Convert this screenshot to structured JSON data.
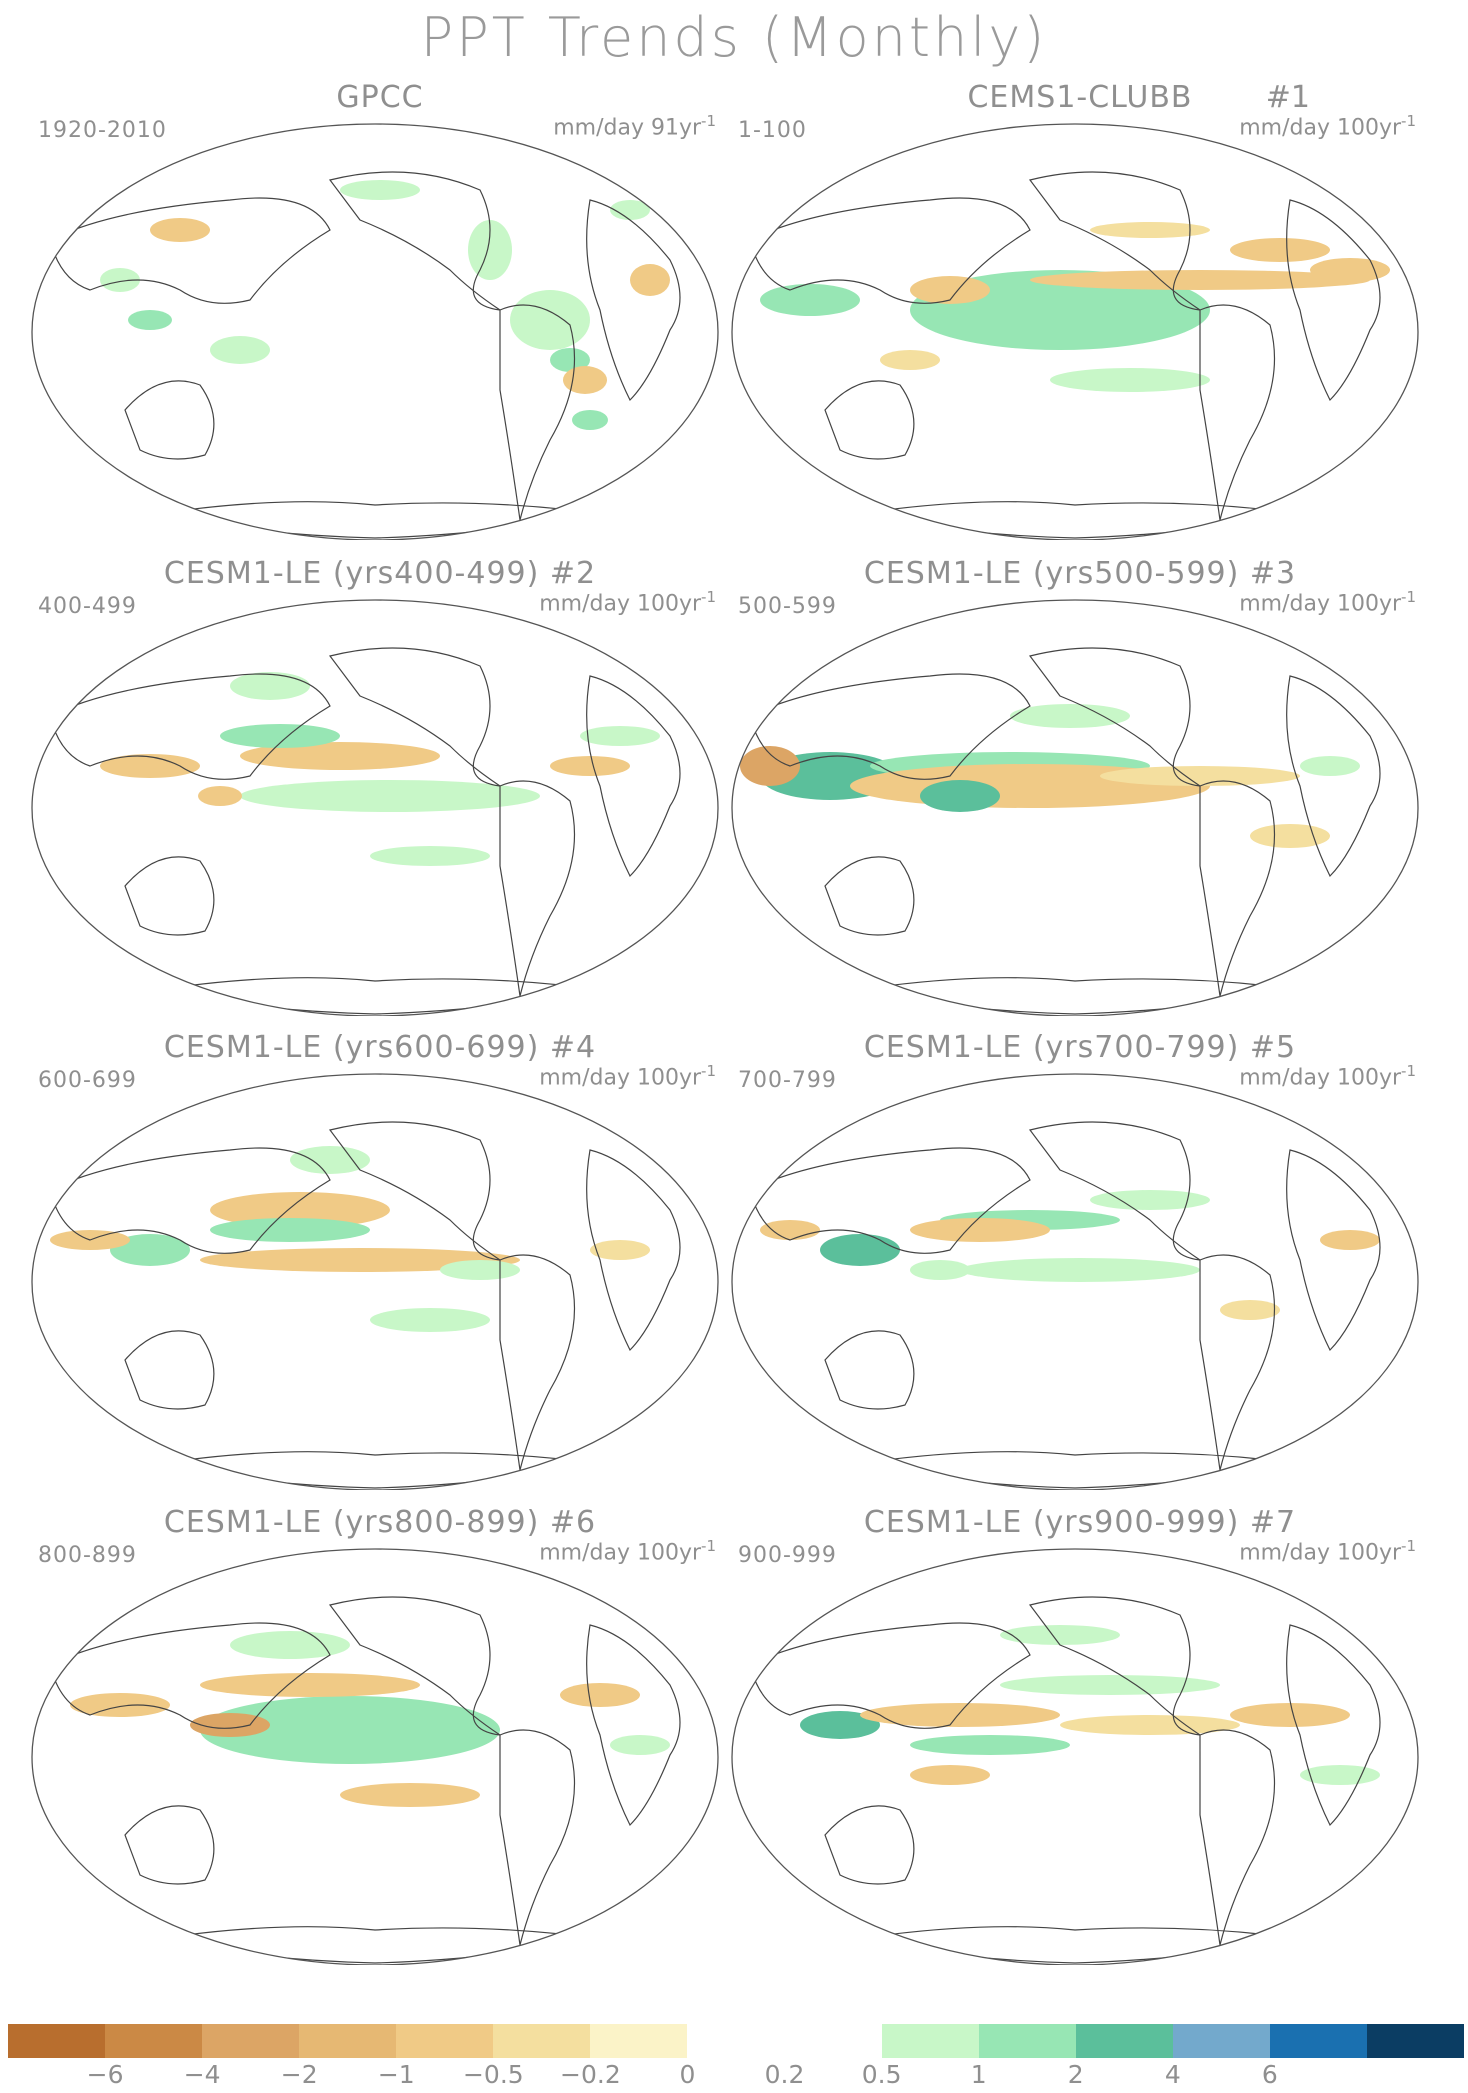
{
  "title": "PPT Trends (Monthly)",
  "panels": [
    {
      "title": "GPCC",
      "member": "",
      "years": "1920-2010",
      "units": "mm/day 91yr",
      "units_exp": "-1"
    },
    {
      "title": "CEMS1-CLUBB",
      "member": "#1",
      "years": "1-100",
      "units": "mm/day 100yr",
      "units_exp": "-1"
    },
    {
      "title": "CESM1-LE (yrs400-499) #2",
      "member": "",
      "years": "400-499",
      "units": "mm/day 100yr",
      "units_exp": "-1"
    },
    {
      "title": "CESM1-LE (yrs500-599) #3",
      "member": "",
      "years": "500-599",
      "units": "mm/day 100yr",
      "units_exp": "-1"
    },
    {
      "title": "CESM1-LE (yrs600-699) #4",
      "member": "",
      "years": "600-699",
      "units": "mm/day 100yr",
      "units_exp": "-1"
    },
    {
      "title": "CESM1-LE (yrs700-799) #5",
      "member": "",
      "years": "700-799",
      "units": "mm/day 100yr",
      "units_exp": "-1"
    },
    {
      "title": "CESM1-LE (yrs800-899) #6",
      "member": "",
      "years": "800-899",
      "units": "mm/day 100yr",
      "units_exp": "-1"
    },
    {
      "title": "CESM1-LE (yrs900-999) #7",
      "member": "",
      "years": "900-999",
      "units": "mm/day 100yr",
      "units_exp": "-1"
    }
  ],
  "colorbar": {
    "colors": [
      "#b86e2e",
      "#cb8945",
      "#dca565",
      "#e6b873",
      "#f0ca86",
      "#f4df9f",
      "#fbf3c8",
      "#ffffff",
      "#ffffff",
      "#c8f7c8",
      "#97e6b4",
      "#5bbf9b",
      "#73a9cc",
      "#1a70b0",
      "#0b3d63"
    ],
    "labels": [
      "-6",
      "-4",
      "-2",
      "-1",
      "-0.5",
      "-0.2",
      "0",
      "0.2",
      "0.5",
      "1",
      "2",
      "4",
      "6"
    ]
  }
}
